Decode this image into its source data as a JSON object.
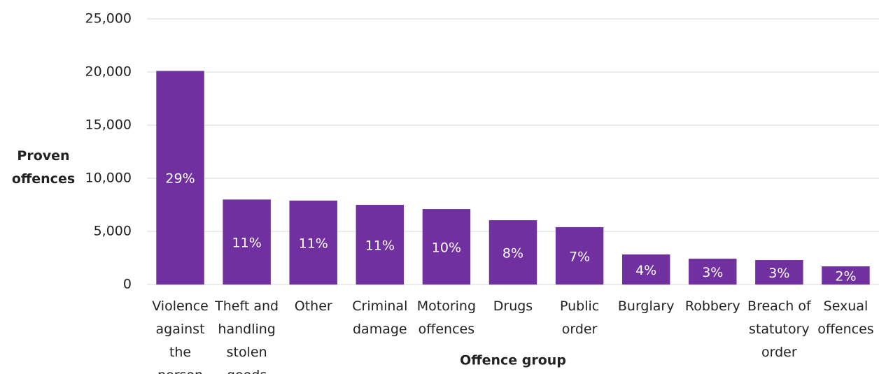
{
  "chart_data": {
    "type": "bar",
    "x_label": "Offence group",
    "y_label": "Proven offences",
    "categories": [
      "Violence against the person",
      "Theft and handling stolen goods",
      "Other",
      "Criminal damage",
      "Motoring offences",
      "Drugs",
      "Public order",
      "Burglary",
      "Robbery",
      "Breach of statutory order",
      "Sexual offences"
    ],
    "values": [
      20100,
      8000,
      7900,
      7500,
      7100,
      6050,
      5400,
      2830,
      2430,
      2300,
      1710
    ],
    "share_labels": [
      "29%",
      "11%",
      "11%",
      "11%",
      "10%",
      "8%",
      "7%",
      "4%",
      "3%",
      "3%",
      "2%"
    ],
    "color": "#7030a0",
    "ylim": [
      0,
      25000
    ],
    "yticks": [
      0,
      {
        "value": 5000,
        "label": "5,000"
      },
      {
        "value": 10000,
        "label": "10,000"
      },
      {
        "value": 15000,
        "label": "15,000"
      },
      {
        "value": 20000,
        "label": "20,000"
      },
      {
        "value": 25000,
        "label": "25,000"
      }
    ],
    "grid": true
  }
}
